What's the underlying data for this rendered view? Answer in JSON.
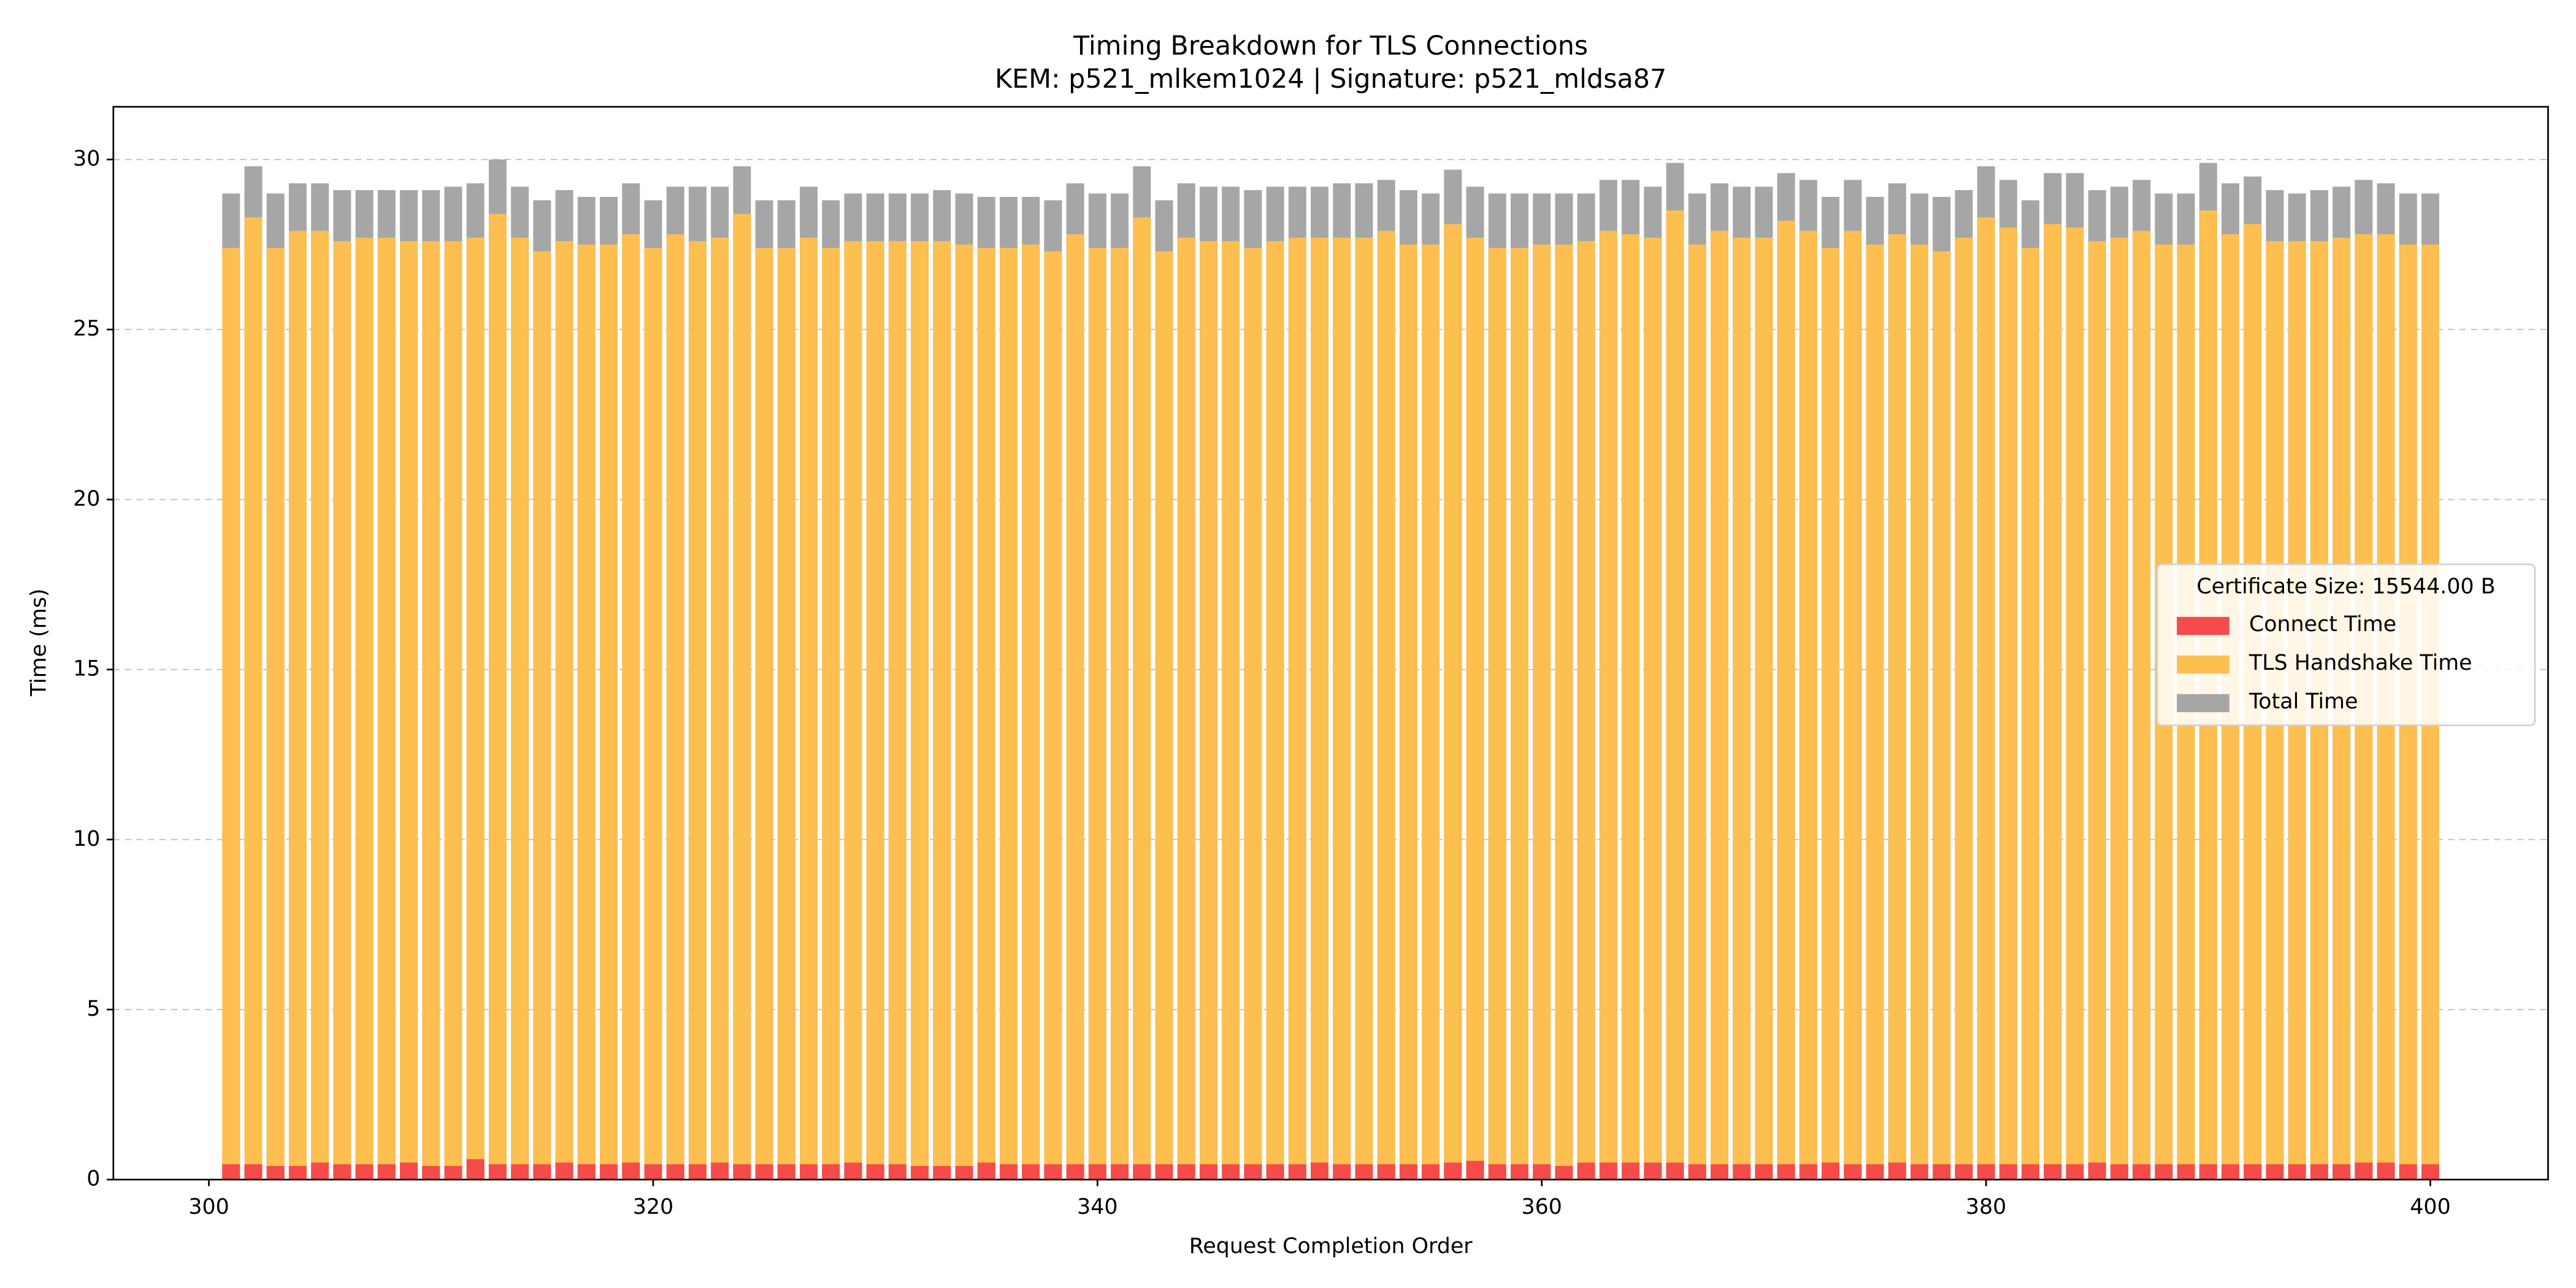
{
  "chart_data": {
    "type": "bar",
    "title": "Timing Breakdown for TLS Connections",
    "subtitle": "KEM: p521_mlkem1024 | Signature: p521_mldsa87",
    "xlabel": "Request Completion Order",
    "ylabel": "Time (ms)",
    "x": [
      301,
      302,
      303,
      304,
      305,
      306,
      307,
      308,
      309,
      310,
      311,
      312,
      313,
      314,
      315,
      316,
      317,
      318,
      319,
      320,
      321,
      322,
      323,
      324,
      325,
      326,
      327,
      328,
      329,
      330,
      331,
      332,
      333,
      334,
      335,
      336,
      337,
      338,
      339,
      340,
      341,
      342,
      343,
      344,
      345,
      346,
      347,
      348,
      349,
      350,
      351,
      352,
      353,
      354,
      355,
      356,
      357,
      358,
      359,
      360,
      361,
      362,
      363,
      364,
      365,
      366,
      367,
      368,
      369,
      370,
      371,
      372,
      373,
      374,
      375,
      376,
      377,
      378,
      379,
      380,
      381,
      382,
      383,
      384,
      385,
      386,
      387,
      388,
      389,
      390,
      391,
      392,
      393,
      394,
      395,
      396,
      397,
      398,
      399,
      400
    ],
    "series": [
      {
        "name": "Total Time",
        "color": "#a6a6a6",
        "values": [
          29.0,
          29.8,
          29.0,
          29.3,
          29.3,
          29.1,
          29.1,
          29.1,
          29.1,
          29.1,
          29.2,
          29.3,
          30.0,
          29.2,
          28.8,
          29.1,
          28.9,
          28.9,
          29.3,
          28.8,
          29.2,
          29.2,
          29.2,
          29.8,
          28.8,
          28.8,
          29.2,
          28.8,
          29.0,
          29.0,
          29.0,
          29.0,
          29.1,
          29.0,
          28.9,
          28.9,
          28.9,
          28.8,
          29.3,
          29.0,
          29.0,
          29.8,
          28.8,
          29.3,
          29.2,
          29.2,
          29.1,
          29.2,
          29.2,
          29.2,
          29.3,
          29.3,
          29.4,
          29.1,
          29.0,
          29.7,
          29.2,
          29.0,
          29.0,
          29.0,
          29.0,
          29.0,
          29.4,
          29.4,
          29.2,
          29.9,
          29.0,
          29.3,
          29.2,
          29.2,
          29.6,
          29.4,
          28.9,
          29.4,
          28.9,
          29.3,
          29.0,
          28.9,
          29.1,
          29.8,
          29.4,
          28.8,
          29.6,
          29.6,
          29.1,
          29.2,
          29.4,
          29.0,
          29.0,
          29.9,
          29.3,
          29.5,
          29.1,
          29.0,
          29.1,
          29.2,
          29.4,
          29.3,
          29.0,
          29.0
        ]
      },
      {
        "name": "TLS Handshake Time",
        "color": "#fdbf50",
        "values": [
          27.4,
          28.3,
          27.4,
          27.9,
          27.9,
          27.6,
          27.7,
          27.7,
          27.6,
          27.6,
          27.6,
          27.7,
          28.4,
          27.7,
          27.3,
          27.6,
          27.5,
          27.5,
          27.8,
          27.4,
          27.8,
          27.6,
          27.7,
          28.4,
          27.4,
          27.4,
          27.7,
          27.4,
          27.6,
          27.6,
          27.6,
          27.6,
          27.6,
          27.5,
          27.4,
          27.4,
          27.5,
          27.3,
          27.8,
          27.4,
          27.4,
          28.3,
          27.3,
          27.7,
          27.6,
          27.6,
          27.4,
          27.6,
          27.7,
          27.7,
          27.7,
          27.7,
          27.9,
          27.5,
          27.5,
          28.1,
          27.7,
          27.4,
          27.4,
          27.5,
          27.5,
          27.6,
          27.9,
          27.8,
          27.7,
          28.5,
          27.5,
          27.9,
          27.7,
          27.7,
          28.2,
          27.9,
          27.4,
          27.9,
          27.5,
          27.8,
          27.5,
          27.3,
          27.7,
          28.3,
          28.0,
          27.4,
          28.1,
          28.0,
          27.6,
          27.7,
          27.9,
          27.5,
          27.5,
          28.5,
          27.8,
          28.1,
          27.6,
          27.6,
          27.6,
          27.7,
          27.8,
          27.8,
          27.5,
          27.5
        ]
      },
      {
        "name": "Connect Time",
        "color": "#f54b4b",
        "values": [
          0.45,
          0.45,
          0.4,
          0.4,
          0.5,
          0.45,
          0.45,
          0.45,
          0.5,
          0.4,
          0.4,
          0.6,
          0.45,
          0.45,
          0.45,
          0.5,
          0.45,
          0.45,
          0.5,
          0.45,
          0.45,
          0.45,
          0.5,
          0.45,
          0.45,
          0.45,
          0.45,
          0.45,
          0.5,
          0.45,
          0.45,
          0.4,
          0.4,
          0.4,
          0.5,
          0.45,
          0.45,
          0.45,
          0.45,
          0.45,
          0.45,
          0.45,
          0.45,
          0.45,
          0.45,
          0.45,
          0.45,
          0.45,
          0.45,
          0.5,
          0.45,
          0.45,
          0.45,
          0.45,
          0.45,
          0.5,
          0.55,
          0.45,
          0.45,
          0.45,
          0.4,
          0.5,
          0.5,
          0.5,
          0.5,
          0.5,
          0.45,
          0.45,
          0.45,
          0.45,
          0.45,
          0.45,
          0.5,
          0.45,
          0.45,
          0.5,
          0.45,
          0.45,
          0.45,
          0.45,
          0.45,
          0.45,
          0.45,
          0.45,
          0.5,
          0.45,
          0.45,
          0.45,
          0.45,
          0.45,
          0.45,
          0.45,
          0.45,
          0.45,
          0.45,
          0.45,
          0.5,
          0.5,
          0.45,
          0.45
        ]
      }
    ],
    "legend_order": [
      2,
      1,
      0
    ],
    "legend_title": "Certificate Size: 15544.00 B",
    "legend": "center right",
    "xlim": [
      295.7,
      405.3
    ],
    "xticks": [
      300,
      320,
      340,
      360,
      380,
      400
    ],
    "ylim": [
      0,
      31.55
    ],
    "yticks": [
      0,
      5,
      10,
      15,
      20,
      25,
      30
    ],
    "grid": true
  }
}
